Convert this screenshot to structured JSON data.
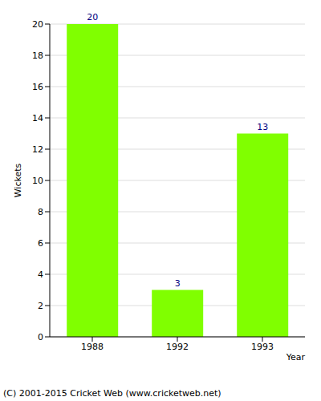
{
  "chart_data": {
    "type": "bar",
    "categories": [
      "1988",
      "1992",
      "1993"
    ],
    "values": [
      20,
      3,
      13
    ],
    "color": "#80ff00",
    "xlabel": "Year",
    "ylabel": "Wickets",
    "ylim": [
      0,
      20
    ],
    "yticks": [
      0,
      2,
      4,
      6,
      8,
      10,
      12,
      14,
      16,
      18,
      20
    ],
    "grid": true,
    "data_labels": true,
    "annotation": "(C) 2001-2015 Cricket Web (www.cricketweb.net)"
  }
}
